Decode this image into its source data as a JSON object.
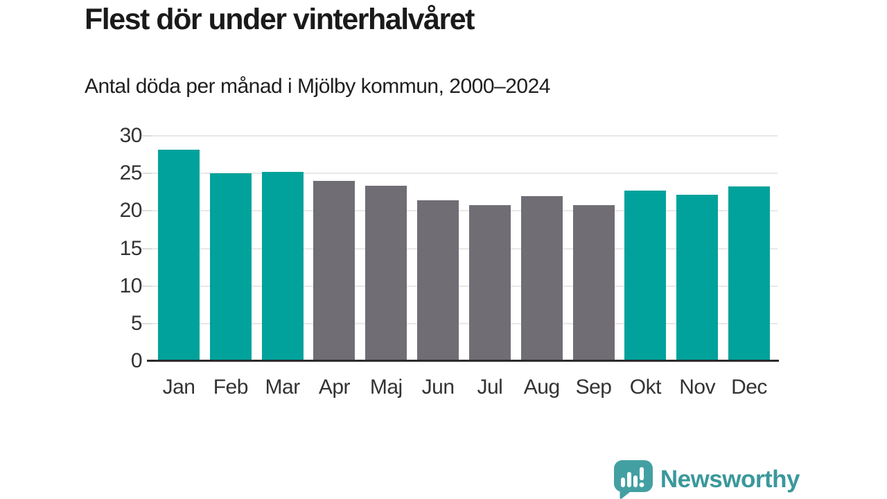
{
  "title": "Flest dör under vinterhalvåret",
  "subtitle": "Antal döda per månad i Mjölby kommun, 2000–2024",
  "chart_data": {
    "type": "bar",
    "title": "Flest dör under vinterhalvåret",
    "subtitle": "Antal döda per månad i Mjölby kommun, 2000–2024",
    "categories": [
      "Jan",
      "Feb",
      "Mar",
      "Apr",
      "Maj",
      "Jun",
      "Jul",
      "Aug",
      "Sep",
      "Okt",
      "Nov",
      "Dec"
    ],
    "values": [
      28.2,
      25.0,
      25.2,
      24.0,
      23.4,
      21.4,
      20.8,
      22.0,
      20.8,
      22.7,
      22.2,
      23.3
    ],
    "bar_color_keys": [
      "teal",
      "teal",
      "teal",
      "gray",
      "gray",
      "gray",
      "gray",
      "gray",
      "gray",
      "teal",
      "teal",
      "teal"
    ],
    "colors": {
      "teal": "#00A29B",
      "gray": "#706D74"
    },
    "xlabel": "",
    "ylabel": "",
    "ylim": [
      0,
      30
    ],
    "yticks": [
      0,
      5,
      10,
      15,
      20,
      25,
      30
    ],
    "grid": true,
    "legend": false
  },
  "footer": {
    "brand": "Newsworthy",
    "logo_icon": "bar-chart-speech-bubble-icon",
    "brand_color": "#3A989B",
    "icon_color": "#43A0A2"
  }
}
